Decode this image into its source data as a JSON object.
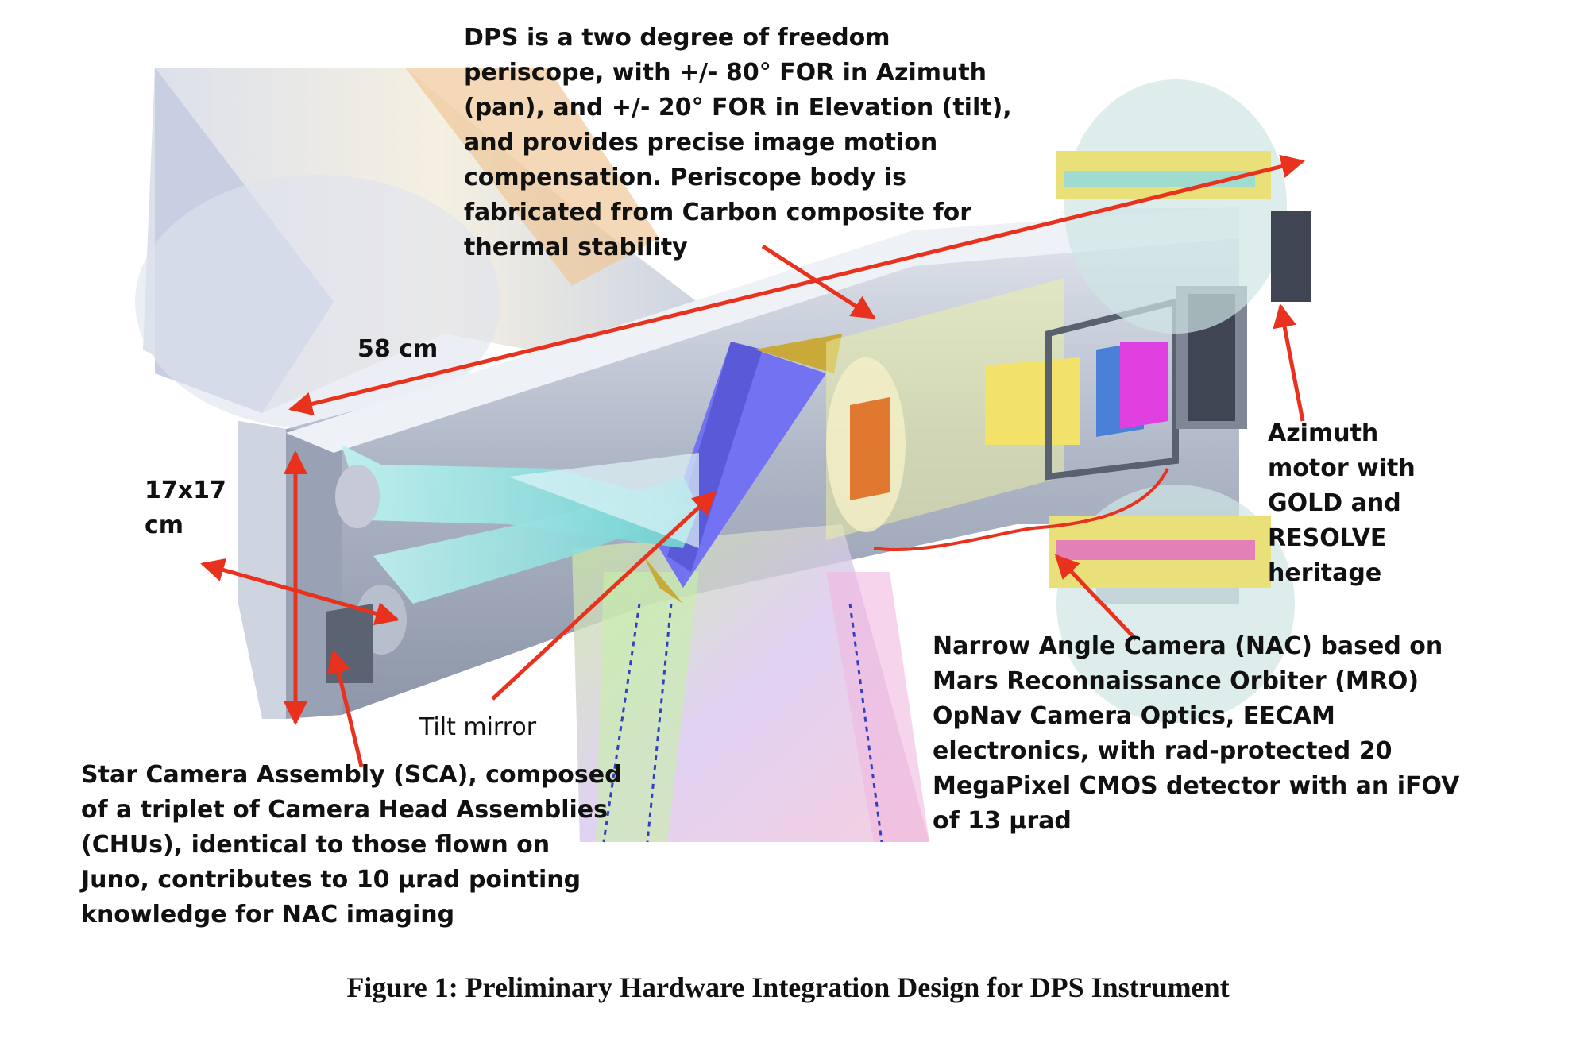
{
  "callouts": {
    "dps": [
      "DPS is a two degree of freedom",
      "periscope, with +/- 80° FOR in Azimuth",
      "(pan), and +/- 20° FOR in Elevation (tilt),",
      "and provides precise image motion",
      "compensation.  Periscope body is",
      "fabricated from Carbon composite for",
      "thermal stability"
    ],
    "length": "58 cm",
    "cross_section": [
      "17x17",
      "cm"
    ],
    "tilt_mirror": "Tilt mirror",
    "azimuth": [
      "Azimuth",
      "motor with",
      "GOLD and",
      "RESOLVE",
      "heritage"
    ],
    "nac": [
      "Narrow Angle Camera (NAC) based on",
      "Mars Reconnaissance Orbiter (MRO)",
      "OpNav Camera Optics, EECAM",
      "electronics, with rad-protected 20",
      "MegaPixel CMOS detector with an iFOV",
      "of 13 µrad"
    ],
    "sca": [
      "Star Camera Assembly (SCA), composed",
      "of a triplet of Camera Head Assemblies",
      "(CHUs), identical to those flown on",
      "Juno, contributes to 10 µrad pointing",
      "knowledge for NAC imaging"
    ]
  },
  "caption": "Figure 1: Preliminary Hardware Integration Design for DPS Instrument",
  "colors": {
    "arrow": "#e8321e",
    "housing": "#b4bccb",
    "mirror": "#6f6ff0",
    "gold": "#c8a93a",
    "lens": "#f2e26a",
    "magenta": "#e040e0",
    "cone": "#cdd6e4"
  }
}
